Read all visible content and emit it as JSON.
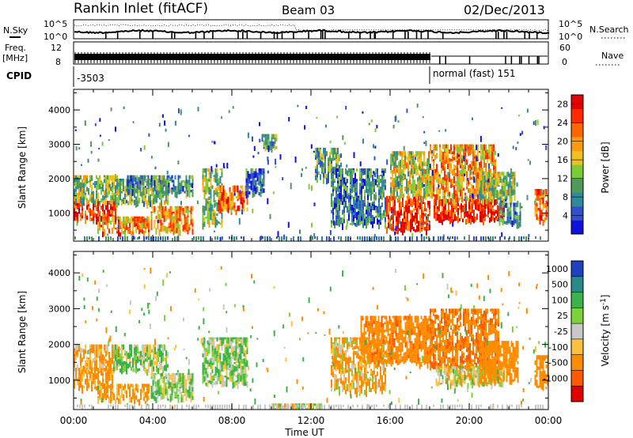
{
  "header": {
    "station": "Rankin Inlet (fitACF)",
    "beam": "Beam 03",
    "date": "02/Dec/2013"
  },
  "panels": {
    "nsky": {
      "label": "N.Sky",
      "ticks": [
        "10^5",
        "10^0"
      ],
      "right_label": "N.Search",
      "right_ticks": [
        "10^5",
        "10^0"
      ]
    },
    "freq": {
      "label_line1": "Freq.",
      "label_line2": "[MHz]",
      "ticks": [
        "12",
        "8"
      ],
      "right_label": "Nave",
      "right_ticks": [
        "60",
        "0"
      ]
    },
    "cpid": {
      "label": "CPID",
      "segments": [
        {
          "text": "-3503",
          "start_hour": 0.0
        },
        {
          "text": "normal (fast) 151",
          "start_hour": 18.0
        }
      ]
    }
  },
  "chart_data": [
    {
      "type": "heatmap",
      "name": "power",
      "ylabel": "Slant Range [km]",
      "ylim": [
        180,
        4600
      ],
      "yticks": [
        1000,
        2000,
        3000,
        4000
      ],
      "xlim": [
        0,
        24
      ],
      "colorbar": {
        "label": "Power [dB]",
        "ticks": [
          4,
          8,
          12,
          16,
          20,
          24,
          28
        ],
        "range": [
          0,
          30
        ],
        "colors": [
          "#1010e0",
          "#3050d0",
          "#2f8a9a",
          "#4f9a5a",
          "#7ecb3a",
          "#f0c020",
          "#ff9a10",
          "#ff6600",
          "#ff2a00",
          "#e60000"
        ]
      },
      "blobs": [
        {
          "t0": 0.0,
          "t1": 2.1,
          "r0": 800,
          "r1": 1350,
          "v": 26
        },
        {
          "t0": 0.0,
          "t1": 2.3,
          "r0": 1350,
          "r1": 2100,
          "v": 13
        },
        {
          "t0": 1.2,
          "t1": 3.8,
          "r0": 430,
          "r1": 900,
          "v": 21
        },
        {
          "t0": 2.0,
          "t1": 4.8,
          "r0": 1300,
          "r1": 2000,
          "v": 12
        },
        {
          "t0": 2.7,
          "t1": 6.0,
          "r0": 1600,
          "r1": 2100,
          "v": 9
        },
        {
          "t0": 3.9,
          "t1": 6.0,
          "r0": 500,
          "r1": 1200,
          "v": 20
        },
        {
          "t0": 6.5,
          "t1": 7.5,
          "r0": 700,
          "r1": 2300,
          "v": 13
        },
        {
          "t0": 7.3,
          "t1": 8.8,
          "r0": 1100,
          "r1": 1800,
          "v": 22
        },
        {
          "t0": 8.7,
          "t1": 9.6,
          "r0": 1600,
          "r1": 2300,
          "v": 6
        },
        {
          "t0": 9.5,
          "t1": 10.3,
          "r0": 2900,
          "r1": 3300,
          "v": 9
        },
        {
          "t0": 12.2,
          "t1": 13.5,
          "r0": 2000,
          "r1": 2900,
          "v": 11
        },
        {
          "t0": 13.0,
          "t1": 15.8,
          "r0": 700,
          "r1": 2300,
          "v": 8
        },
        {
          "t0": 15.8,
          "t1": 18.0,
          "r0": 500,
          "r1": 1500,
          "v": 26
        },
        {
          "t0": 16.0,
          "t1": 18.0,
          "r0": 1500,
          "r1": 2800,
          "v": 15
        },
        {
          "t0": 18.2,
          "t1": 21.8,
          "r0": 800,
          "r1": 1400,
          "v": 27
        },
        {
          "t0": 18.0,
          "t1": 21.3,
          "r0": 1400,
          "r1": 3000,
          "v": 20
        },
        {
          "t0": 20.5,
          "t1": 22.3,
          "r0": 1400,
          "r1": 2200,
          "v": 13
        },
        {
          "t0": 21.5,
          "t1": 22.6,
          "r0": 700,
          "r1": 1300,
          "v": 8
        },
        {
          "t0": 23.3,
          "t1": 24.0,
          "r0": 800,
          "r1": 1700,
          "v": 22
        }
      ]
    },
    {
      "type": "heatmap",
      "name": "velocity",
      "xlabel": "Time UT",
      "ylabel": "Slant Range [km]",
      "ylim": [
        180,
        4600
      ],
      "yticks": [
        1000,
        2000,
        3000,
        4000
      ],
      "xlim": [
        0,
        24
      ],
      "xticks": [
        "00:00",
        "04:00",
        "08:00",
        "12:00",
        "16:00",
        "20:00",
        "00:00"
      ],
      "colorbar": {
        "label": "Velocity [m s^-1]",
        "ticks": [
          "1000",
          "500",
          "100",
          "25",
          "-25",
          "-100",
          "-500",
          "-1000"
        ],
        "colors": [
          "#2040c0",
          "#2a8a8a",
          "#3cb34a",
          "#7cd23a",
          "#c8c8c8",
          "#ffc040",
          "#ff8c00",
          "#ff5a00",
          "#e00000"
        ]
      },
      "blobs": [
        {
          "t0": 0.0,
          "t1": 2.0,
          "r0": 800,
          "r1": 1350,
          "v": -200
        },
        {
          "t0": 0.0,
          "t1": 2.3,
          "r0": 1350,
          "r1": 2000,
          "v": -120
        },
        {
          "t0": 1.2,
          "t1": 3.8,
          "r0": 450,
          "r1": 900,
          "v": -180
        },
        {
          "t0": 2.0,
          "t1": 4.8,
          "r0": 1300,
          "r1": 2000,
          "v": 80
        },
        {
          "t0": 3.9,
          "t1": 6.0,
          "r0": 500,
          "r1": 1200,
          "v": 60
        },
        {
          "t0": 6.5,
          "t1": 8.8,
          "r0": 900,
          "r1": 2200,
          "v": 70
        },
        {
          "t0": 10.0,
          "t1": 12.5,
          "r0": 200,
          "r1": 350,
          "v": 0
        },
        {
          "t0": 13.0,
          "t1": 15.8,
          "r0": 700,
          "r1": 2200,
          "v": -90
        },
        {
          "t0": 14.5,
          "t1": 18.0,
          "r0": 1500,
          "r1": 2800,
          "v": -400
        },
        {
          "t0": 18.0,
          "t1": 21.5,
          "r0": 1400,
          "r1": 3000,
          "v": -450
        },
        {
          "t0": 18.3,
          "t1": 21.8,
          "r0": 900,
          "r1": 1400,
          "v": -20
        },
        {
          "t0": 20.5,
          "t1": 22.5,
          "r0": 1000,
          "r1": 2100,
          "v": -350
        },
        {
          "t0": 23.3,
          "t1": 24.0,
          "r0": 800,
          "r1": 1700,
          "v": -300
        }
      ]
    }
  ]
}
